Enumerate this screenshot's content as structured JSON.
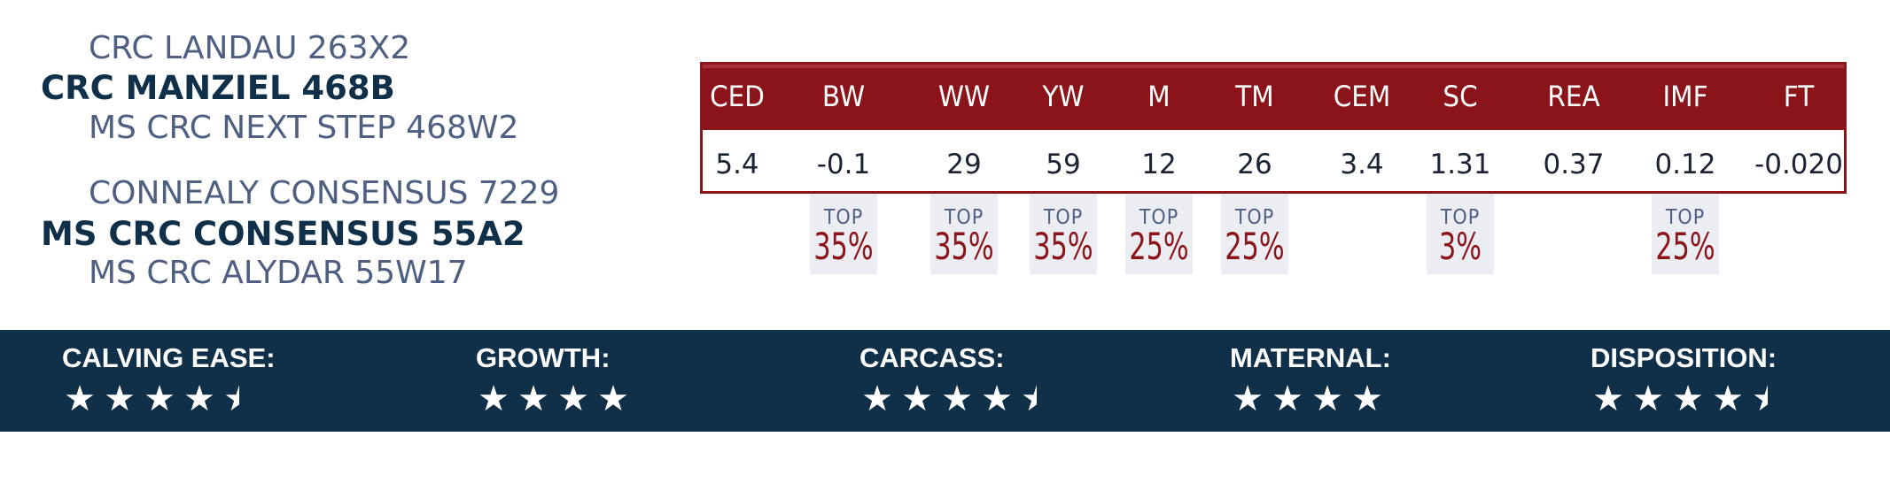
{
  "pedigree": {
    "sire_sire": "CRC LANDAU 263X2",
    "sire": "CRC MANZIEL 468B",
    "sire_dam": "MS CRC NEXT STEP 468W2",
    "dam_sire": "CONNEALY CONSENSUS 7229",
    "dam": "MS CRC CONSENSUS 55A2",
    "dam_dam": "MS CRC ALYDAR 55W17"
  },
  "epd": {
    "top_label": "TOP",
    "columns": [
      {
        "head": "CED",
        "value": "5.4",
        "top": null
      },
      {
        "head": "BW",
        "value": "-0.1",
        "top": "35%"
      },
      {
        "head": "WW",
        "value": "29",
        "top": "35%"
      },
      {
        "head": "YW",
        "value": "59",
        "top": "35%"
      },
      {
        "head": "M",
        "value": "12",
        "top": "25%"
      },
      {
        "head": "TM",
        "value": "26",
        "top": "25%"
      },
      {
        "head": "CEM",
        "value": "3.4",
        "top": null
      },
      {
        "head": "SC",
        "value": "1.31",
        "top": "3%"
      },
      {
        "head": "REA",
        "value": "0.37",
        "top": null
      },
      {
        "head": "IMF",
        "value": "0.12",
        "top": "25%"
      },
      {
        "head": "FT",
        "value": "-0.020",
        "top": null
      }
    ]
  },
  "ratings": [
    {
      "label": "CALVING EASE:",
      "stars": 4.5
    },
    {
      "label": "GROWTH:",
      "stars": 4
    },
    {
      "label": "CARCASS:",
      "stars": 4.5
    },
    {
      "label": "MATERNAL:",
      "stars": 4
    },
    {
      "label": "DISPOSITION:",
      "stars": 4.5
    }
  ],
  "colors": {
    "accent_red": "#8a141a",
    "navy": "#10304a",
    "slate_text": "#4e5f82",
    "shade": "#ecedf2"
  },
  "icons": {
    "star": "star-icon",
    "half_star": "half-star-icon"
  }
}
